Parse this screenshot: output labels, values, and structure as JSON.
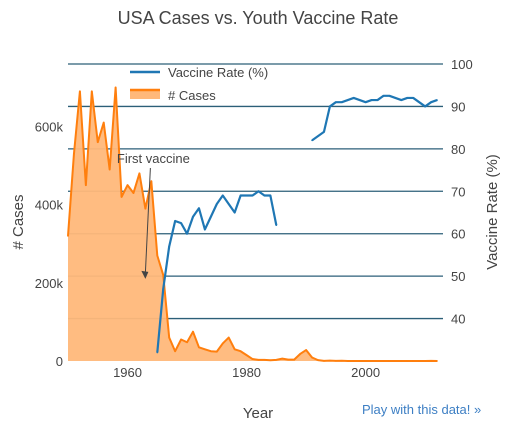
{
  "chart_data": {
    "type": "line",
    "title": "USA Cases vs. Youth Vaccine Rate",
    "xlabel": "Year",
    "ylabel_left": "# Cases",
    "ylabel_right": "Vaccine Rate (%)",
    "xlim": [
      1950,
      2013
    ],
    "ylim_left": [
      0,
      760000
    ],
    "ylim_right": [
      30,
      100
    ],
    "x_ticks": [
      1960,
      1980,
      2000
    ],
    "y_ticks_left": [
      0,
      200000,
      400000,
      600000
    ],
    "y_tick_labels_left": [
      "0",
      "200k",
      "400k",
      "600k"
    ],
    "y_ticks_right": [
      40,
      50,
      60,
      70,
      80,
      90,
      100
    ],
    "y_tick_labels_right": [
      "40",
      "50",
      "60",
      "70",
      "80",
      "90",
      "100"
    ],
    "grid": "right-axis gridlines",
    "legend_position": "top-left",
    "annotation": {
      "text": "First vaccine",
      "x": 1963,
      "y": 210000
    },
    "series": [
      {
        "name": "Vaccine Rate (%)",
        "axis": "right",
        "type": "line",
        "color": "#1f77b4",
        "segments": [
          {
            "x": [
              1965,
              1966,
              1967,
              1968,
              1969,
              1970,
              1971,
              1972,
              1973,
              1974,
              1975,
              1976,
              1977,
              1978,
              1979,
              1980,
              1981,
              1982,
              1983,
              1984,
              1985
            ],
            "y": [
              32,
              47,
              57,
              63,
              62.5,
              60,
              64,
              66,
              61,
              64,
              67,
              69,
              67,
              65,
              69,
              69,
              69,
              70,
              69,
              69,
              62
            ]
          },
          {
            "x": [
              1991,
              1992,
              1993,
              1994,
              1995,
              1996,
              1997,
              1998,
              1999,
              2000,
              2001,
              2002,
              2003,
              2004,
              2005,
              2006,
              2007,
              2008,
              2009,
              2010,
              2011,
              2012
            ],
            "y": [
              82,
              83,
              84,
              90,
              91,
              91,
              91.5,
              92,
              91.5,
              91,
              91.5,
              91.5,
              92.5,
              92.5,
              92,
              91.5,
              92,
              92,
              91,
              90,
              91,
              91.5
            ]
          }
        ]
      },
      {
        "name": "# Cases",
        "axis": "left",
        "type": "area",
        "color": "#ff7f0e",
        "fill_color": "#ffb87a",
        "x": [
          1950,
          1951,
          1952,
          1953,
          1954,
          1955,
          1956,
          1957,
          1958,
          1959,
          1960,
          1961,
          1962,
          1963,
          1964,
          1965,
          1966,
          1967,
          1968,
          1969,
          1970,
          1971,
          1972,
          1973,
          1974,
          1975,
          1976,
          1977,
          1978,
          1979,
          1980,
          1981,
          1982,
          1983,
          1984,
          1985,
          1986,
          1987,
          1988,
          1989,
          1990,
          1991,
          1992,
          1993,
          1994,
          1995,
          1996,
          1997,
          1998,
          1999,
          2000,
          2001,
          2002,
          2003,
          2004,
          2005,
          2006,
          2007,
          2008,
          2009,
          2010,
          2011,
          2012
        ],
        "y": [
          320000,
          530000,
          690000,
          450000,
          690000,
          560000,
          610000,
          490000,
          700000,
          420000,
          450000,
          430000,
          480000,
          390000,
          460000,
          270000,
          220000,
          60000,
          25000,
          55000,
          48000,
          75000,
          35000,
          30000,
          25000,
          24000,
          45000,
          60000,
          30000,
          25000,
          15000,
          5000,
          3000,
          3000,
          2000,
          3000,
          6000,
          3500,
          3500,
          18000,
          28000,
          9000,
          2200,
          300,
          950,
          300,
          500,
          150,
          100,
          100,
          90,
          100,
          40,
          60,
          40,
          70,
          60,
          40,
          140,
          70,
          60,
          220,
          55
        ]
      }
    ]
  },
  "footer": {
    "link_text": "Play with this data! »"
  }
}
